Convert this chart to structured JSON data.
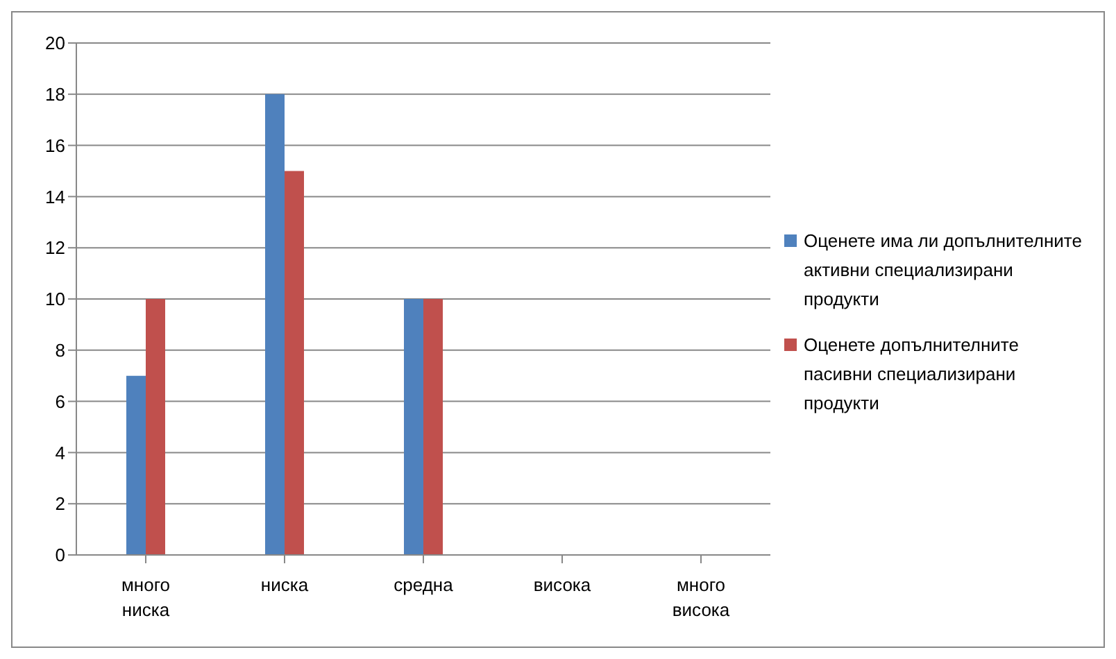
{
  "chart_data": {
    "type": "bar",
    "categories": [
      "много ниска",
      "ниска",
      "средна",
      "висока",
      "много висока"
    ],
    "series": [
      {
        "name": "Оценете има ли допълнителните активни специализирани продукти",
        "color": "#4f81bd",
        "values": [
          7,
          18,
          10,
          0,
          0
        ]
      },
      {
        "name": "Оценете допълнителните пасивни специализирани продукти",
        "color": "#c0504d",
        "values": [
          10,
          15,
          10,
          0,
          0
        ]
      }
    ],
    "ylim": [
      0,
      20
    ],
    "yticks": [
      0,
      2,
      4,
      6,
      8,
      10,
      12,
      14,
      16,
      18,
      20
    ],
    "grid": "y",
    "legend": "right"
  }
}
